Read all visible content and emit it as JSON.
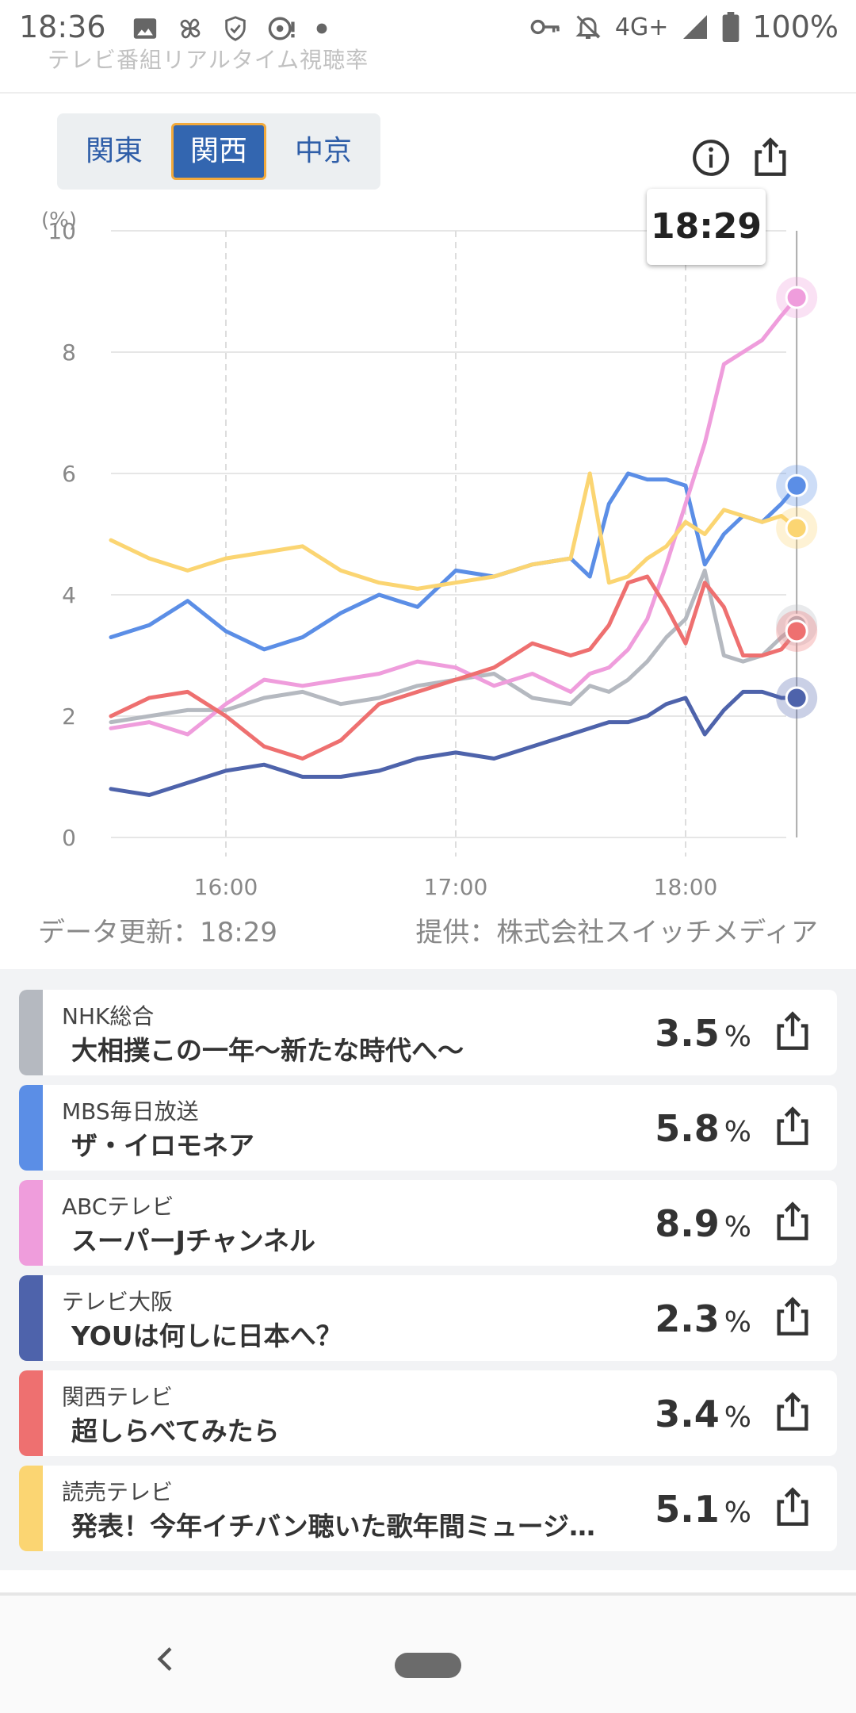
{
  "status_bar": {
    "time": "18:36",
    "network": "4G+",
    "battery": "100%"
  },
  "page_header_cut": "テレビ番組リアルタイム視聴率",
  "region_tabs": [
    {
      "label": "関東",
      "active": false
    },
    {
      "label": "関西",
      "active": true
    },
    {
      "label": "中京",
      "active": false
    }
  ],
  "chart_data": {
    "type": "line",
    "ylabel": "(%)",
    "ylim": [
      0,
      10
    ],
    "yticks": [
      "0",
      "2",
      "4",
      "6",
      "8",
      "10"
    ],
    "xticks": [
      "16:00",
      "17:00",
      "18:00"
    ],
    "xlim_minutes_from_1530": [
      0,
      179
    ],
    "x_minutes": [
      0,
      10,
      20,
      30,
      40,
      50,
      60,
      70,
      80,
      90,
      100,
      110,
      120,
      125,
      130,
      135,
      140,
      145,
      150,
      155,
      160,
      165,
      170,
      175,
      179
    ],
    "tooltip_time": "18:29",
    "series": [
      {
        "name": "NHK総合",
        "color": "#b5b9c0",
        "values": [
          1.9,
          2.0,
          2.1,
          2.1,
          2.3,
          2.4,
          2.2,
          2.3,
          2.5,
          2.6,
          2.7,
          2.3,
          2.2,
          2.5,
          2.4,
          2.6,
          2.9,
          3.3,
          3.6,
          4.4,
          3.0,
          2.9,
          3.0,
          3.3,
          3.5
        ]
      },
      {
        "name": "MBS毎日放送",
        "color": "#5b8ee6",
        "values": [
          3.3,
          3.5,
          3.9,
          3.4,
          3.1,
          3.3,
          3.7,
          4.0,
          3.8,
          4.4,
          4.3,
          4.5,
          4.6,
          4.3,
          5.5,
          6.0,
          5.9,
          5.9,
          5.8,
          4.5,
          5.0,
          5.3,
          5.2,
          5.5,
          5.8
        ]
      },
      {
        "name": "ABCテレビ",
        "color": "#ef9ddc",
        "values": [
          1.8,
          1.9,
          1.7,
          2.2,
          2.6,
          2.5,
          2.6,
          2.7,
          2.9,
          2.8,
          2.5,
          2.7,
          2.4,
          2.7,
          2.8,
          3.1,
          3.6,
          4.5,
          5.5,
          6.5,
          7.8,
          8.0,
          8.2,
          8.6,
          8.9
        ]
      },
      {
        "name": "テレビ大阪",
        "color": "#4e63ab",
        "values": [
          0.8,
          0.7,
          0.9,
          1.1,
          1.2,
          1.0,
          1.0,
          1.1,
          1.3,
          1.4,
          1.3,
          1.5,
          1.7,
          1.8,
          1.9,
          1.9,
          2.0,
          2.2,
          2.3,
          1.7,
          2.1,
          2.4,
          2.4,
          2.3,
          2.3
        ]
      },
      {
        "name": "関西テレビ",
        "color": "#ee7070",
        "values": [
          2.0,
          2.3,
          2.4,
          2.0,
          1.5,
          1.3,
          1.6,
          2.2,
          2.4,
          2.6,
          2.8,
          3.2,
          3.0,
          3.1,
          3.5,
          4.2,
          4.3,
          3.8,
          3.2,
          4.2,
          3.8,
          3.0,
          3.0,
          3.1,
          3.4
        ]
      },
      {
        "name": "読売テレビ",
        "color": "#fbd572",
        "values": [
          4.9,
          4.6,
          4.4,
          4.6,
          4.7,
          4.8,
          4.4,
          4.2,
          4.1,
          4.2,
          4.3,
          4.5,
          4.6,
          6.0,
          4.2,
          4.3,
          4.6,
          4.8,
          5.2,
          5.0,
          5.4,
          5.3,
          5.2,
          5.3,
          5.1
        ]
      }
    ]
  },
  "data_updated": "データ更新：18:29",
  "provider": "提供：株式会社スイッチメディア",
  "programs": [
    {
      "station": "NHK総合",
      "title": "大相撲この一年〜新たな時代へ〜",
      "rating": "3.5",
      "unit": "%",
      "color": "#b5b9c0"
    },
    {
      "station": "MBS毎日放送",
      "title": "ザ・イロモネア",
      "rating": "5.8",
      "unit": "%",
      "color": "#5b8ee6"
    },
    {
      "station": "ABCテレビ",
      "title": "スーパーJチャンネル",
      "rating": "8.9",
      "unit": "%",
      "color": "#ef9ddc"
    },
    {
      "station": "テレビ大阪",
      "title": "YOUは何しに日本へ？",
      "rating": "2.3",
      "unit": "%",
      "color": "#4e63ab"
    },
    {
      "station": "関西テレビ",
      "title": "超しらべてみたら",
      "rating": "3.4",
      "unit": "%",
      "color": "#ee7070"
    },
    {
      "station": "読売テレビ",
      "title": "発表！今年イチバン聴いた歌年間ミュージ…",
      "rating": "5.1",
      "unit": "%",
      "color": "#fbd572"
    }
  ],
  "icons": {
    "status_left": [
      "image-icon",
      "pinwheel-icon",
      "shield-check-icon",
      "cast-icon",
      "dot-icon"
    ],
    "status_right": [
      "key-icon",
      "bell-off-icon",
      "signal-icon",
      "battery-icon"
    ]
  }
}
